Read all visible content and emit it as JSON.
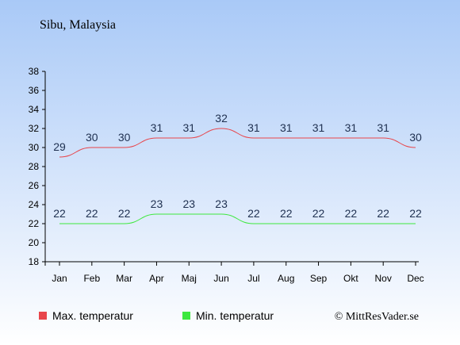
{
  "location": "Sibu, Malaysia",
  "copyright": "© MittResVader.se",
  "colors": {
    "bg_top": "#a9c9f7",
    "bg_bottom": "#ffffff",
    "max": "#e8454a",
    "min": "#3ee83e",
    "label": "#1f3050",
    "axis": "#000000"
  },
  "chart_data": {
    "type": "line",
    "categories": [
      "Jan",
      "Feb",
      "Mar",
      "Apr",
      "Maj",
      "Jun",
      "Jul",
      "Aug",
      "Sep",
      "Okt",
      "Nov",
      "Dec"
    ],
    "series": [
      {
        "name": "Max. temperatur",
        "values": [
          29,
          30,
          30,
          31,
          31,
          32,
          31,
          31,
          31,
          31,
          31,
          30
        ]
      },
      {
        "name": "Min. temperatur",
        "values": [
          22,
          22,
          22,
          23,
          23,
          23,
          22,
          22,
          22,
          22,
          22,
          22
        ]
      }
    ],
    "ylim": [
      18,
      38
    ],
    "yticks": [
      18,
      20,
      22,
      24,
      26,
      28,
      30,
      32,
      34,
      36,
      38
    ],
    "grid": false,
    "legend": "bottom"
  }
}
